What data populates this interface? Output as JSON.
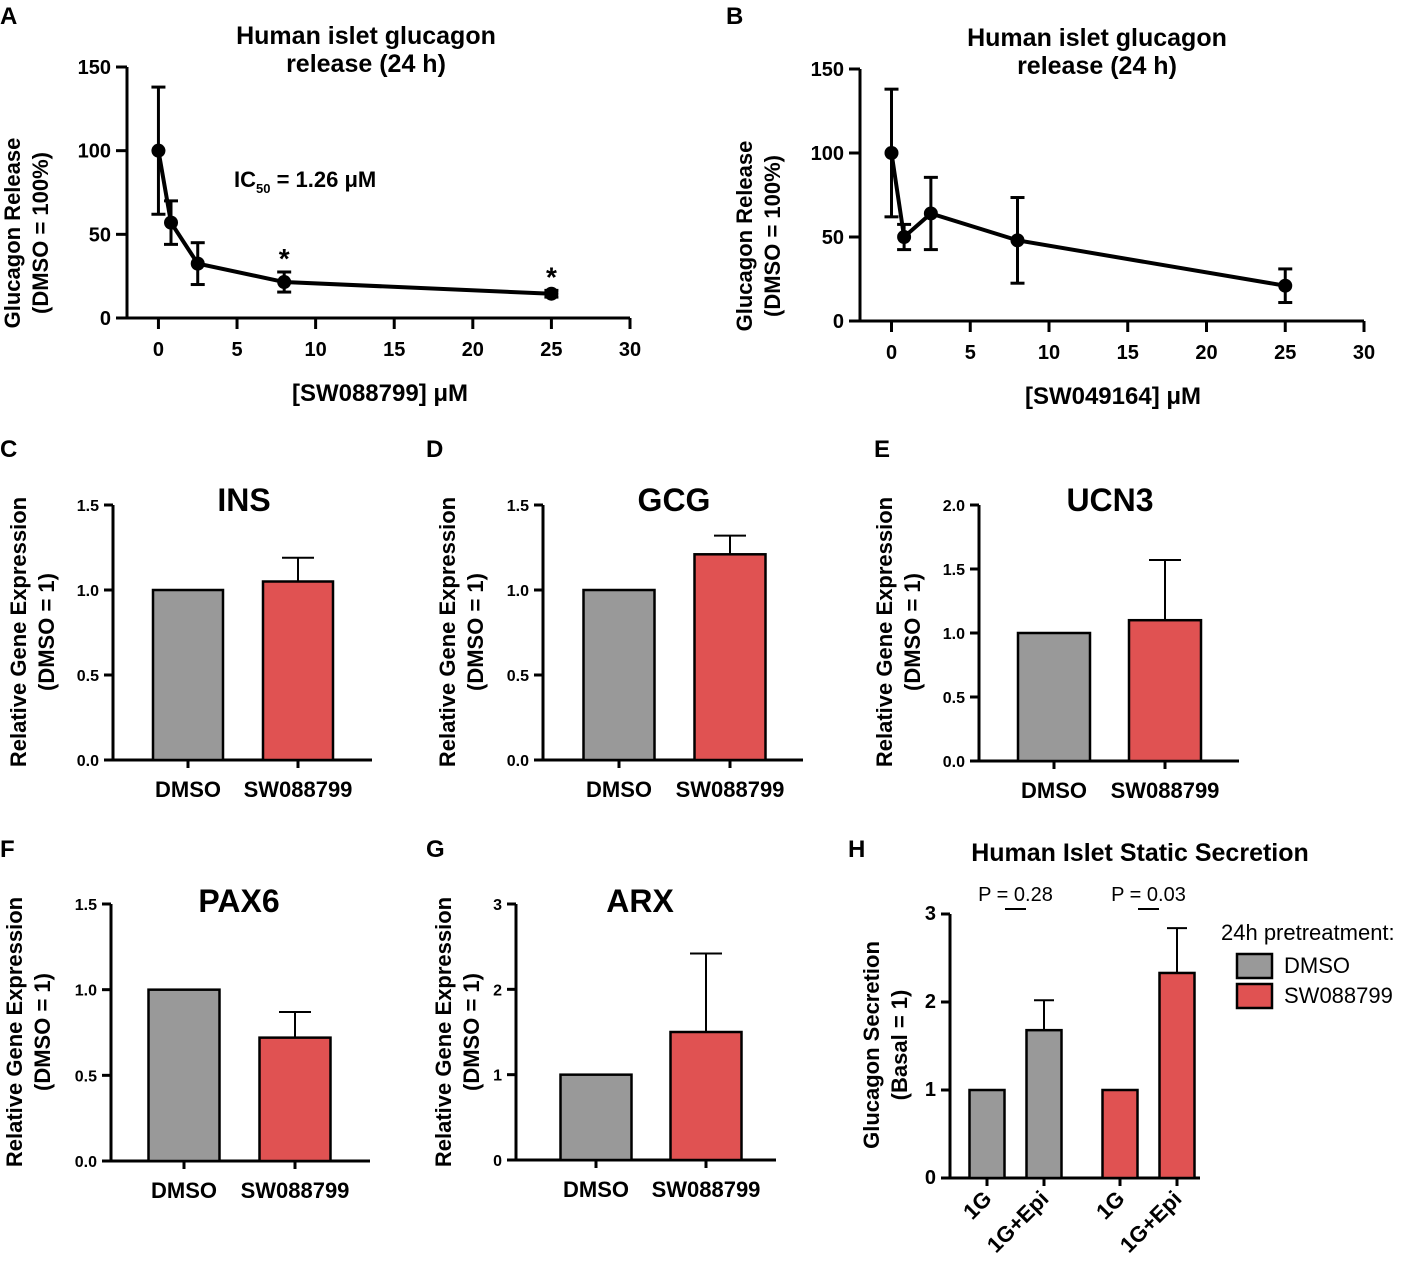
{
  "colors": {
    "dmso": "#999999",
    "sw": "#e05252",
    "axis": "#000000"
  },
  "panel_labels": [
    "A",
    "B",
    "C",
    "D",
    "E",
    "F",
    "G",
    "H"
  ],
  "chart_data": [
    {
      "id": "A",
      "type": "line",
      "title_lines": [
        "Human islet glucagon",
        "release (24 h)"
      ],
      "xlabel": "[SW088799] μM",
      "ylabel_lines": [
        "Glucagon Release",
        "(DMSO = 100%)"
      ],
      "xlim": [
        -2,
        30
      ],
      "ylim": [
        0,
        150
      ],
      "xticks": [
        0,
        5,
        10,
        15,
        20,
        25,
        30
      ],
      "yticks": [
        0,
        50,
        100,
        150
      ],
      "x": [
        0,
        0.8,
        2.5,
        8,
        25
      ],
      "y": [
        100,
        57,
        32.5,
        21.5,
        14.5
      ],
      "err": [
        38,
        13,
        12.5,
        6,
        2
      ],
      "significance": [
        "",
        "",
        "",
        "*",
        "*"
      ],
      "annotation": {
        "main": "IC",
        "sub": "50",
        "rest": " = 1.26 μM"
      }
    },
    {
      "id": "B",
      "type": "line",
      "title_lines": [
        "Human islet glucagon",
        "release (24 h)"
      ],
      "xlabel": "[SW049164] μM",
      "ylabel_lines": [
        "Glucagon Release",
        "(DMSO = 100%)"
      ],
      "xlim": [
        -2,
        30
      ],
      "ylim": [
        0,
        150
      ],
      "xticks": [
        0,
        5,
        10,
        15,
        20,
        25,
        30
      ],
      "yticks": [
        0,
        50,
        100,
        150
      ],
      "x": [
        0,
        0.8,
        2.5,
        8,
        25
      ],
      "y": [
        100,
        50,
        64,
        48,
        21
      ],
      "err": [
        38,
        7.5,
        21.5,
        25.5,
        10
      ]
    },
    {
      "id": "C",
      "type": "bar",
      "title": "INS",
      "ylabel_lines": [
        "Relative Gene Expression",
        "(DMSO = 1)"
      ],
      "categories": [
        "DMSO",
        "SW088799"
      ],
      "values": [
        1.0,
        1.05
      ],
      "err": [
        0,
        0.14
      ],
      "ylim": [
        0,
        1.5
      ],
      "yticks": [
        "0.0",
        "0.5",
        "1.0",
        "1.5"
      ]
    },
    {
      "id": "D",
      "type": "bar",
      "title": "GCG",
      "ylabel_lines": [
        "Relative Gene Expression",
        "(DMSO = 1)"
      ],
      "categories": [
        "DMSO",
        "SW088799"
      ],
      "values": [
        1.0,
        1.21
      ],
      "err": [
        0,
        0.11
      ],
      "ylim": [
        0,
        1.5
      ],
      "yticks": [
        "0.0",
        "0.5",
        "1.0",
        "1.5"
      ]
    },
    {
      "id": "E",
      "type": "bar",
      "title": "UCN3",
      "ylabel_lines": [
        "Relative Gene Expression",
        "(DMSO = 1)"
      ],
      "categories": [
        "DMSO",
        "SW088799"
      ],
      "values": [
        1.0,
        1.1
      ],
      "err": [
        0,
        0.47
      ],
      "ylim": [
        0,
        2.0
      ],
      "yticks": [
        "0.0",
        "0.5",
        "1.0",
        "1.5",
        "2.0"
      ]
    },
    {
      "id": "F",
      "type": "bar",
      "title": "PAX6",
      "ylabel_lines": [
        "Relative Gene Expression",
        "(DMSO = 1)"
      ],
      "categories": [
        "DMSO",
        "SW088799"
      ],
      "values": [
        1.0,
        0.72
      ],
      "err": [
        0,
        0.15
      ],
      "ylim": [
        0,
        1.5
      ],
      "yticks": [
        "0.0",
        "0.5",
        "1.0",
        "1.5"
      ]
    },
    {
      "id": "G",
      "type": "bar",
      "title": "ARX",
      "ylabel_lines": [
        "Relative Gene Expression",
        "(DMSO = 1)"
      ],
      "categories": [
        "DMSO",
        "SW088799"
      ],
      "values": [
        1.0,
        1.5
      ],
      "err": [
        0,
        0.92
      ],
      "ylim": [
        0,
        3
      ],
      "yticks": [
        "0",
        "1",
        "2",
        "3"
      ]
    },
    {
      "id": "H",
      "type": "bar",
      "title": "Human Islet Static Secretion",
      "ylabel_lines": [
        "Glucagon Secretion",
        "(Basal = 1)"
      ],
      "categories": [
        "1G",
        "1G+Epi",
        "1G",
        "1G+Epi"
      ],
      "groups": [
        "DMSO",
        "DMSO",
        "SW088799",
        "SW088799"
      ],
      "values": [
        1.0,
        1.68,
        1.0,
        2.33
      ],
      "err": [
        0,
        0.34,
        0,
        0.51
      ],
      "ylim": [
        0,
        3
      ],
      "yticks": [
        "0",
        "1",
        "2",
        "3"
      ],
      "comparisons": [
        {
          "between": [
            0,
            1
          ],
          "label": "P = 0.28"
        },
        {
          "between": [
            2,
            3
          ],
          "label": "P = 0.03"
        }
      ],
      "legend": {
        "title": "24h pretreatment:",
        "items": [
          "DMSO",
          "SW088799"
        ]
      }
    }
  ]
}
